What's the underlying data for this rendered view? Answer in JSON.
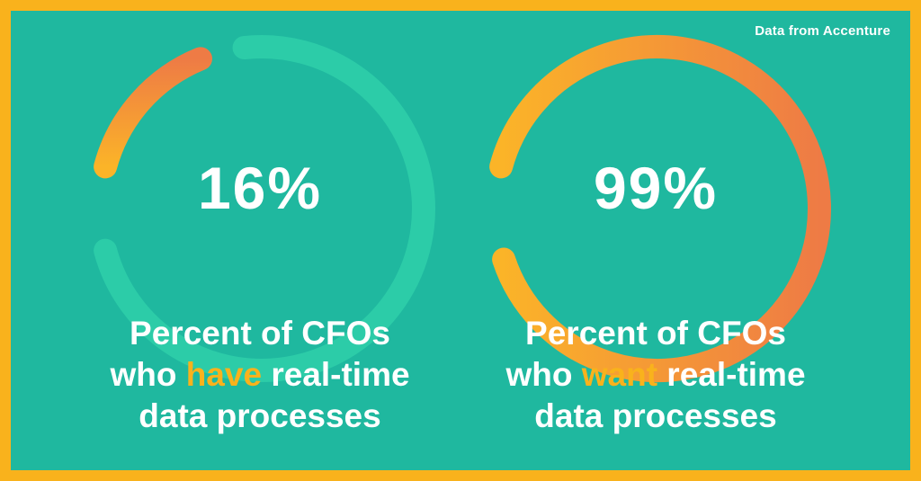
{
  "source": "Data from Accenture",
  "colors": {
    "frame": "#F9B21C",
    "background": "#1FB89F",
    "track": "#2CCCA8",
    "fill_start": "#FBB428",
    "fill_end": "#EE7B45",
    "highlight": "#F9B21C"
  },
  "chart_data": [
    {
      "type": "gauge",
      "value": 16,
      "max": 100,
      "value_label": "16%",
      "caption": {
        "line1": "Percent of CFOs",
        "line2_before": "who ",
        "line2_highlight": "have",
        "line2_after": " real-time",
        "line3": "data processes"
      }
    },
    {
      "type": "gauge",
      "value": 99,
      "max": 100,
      "value_label": "99%",
      "caption": {
        "line1": "Percent of CFOs",
        "line2_before": "who ",
        "line2_highlight": "want",
        "line2_after": " real-time",
        "line3": "data processes"
      }
    }
  ]
}
